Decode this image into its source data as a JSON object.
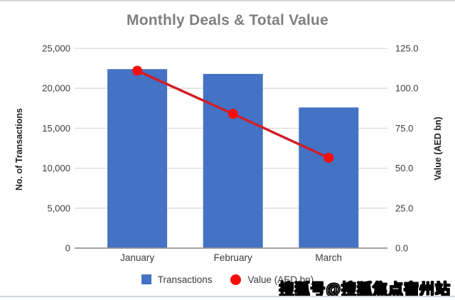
{
  "chart": {
    "title": "Monthly Deals & Total Value",
    "left_axis_title": "No. of Transactions",
    "right_axis_title": "Value (AED bn)"
  },
  "chart_data": {
    "type": "bar",
    "subtype": "combo-bar-line-dual-axis",
    "title": "Monthly Deals & Total Value",
    "categories": [
      "January",
      "February",
      "March"
    ],
    "series": [
      {
        "name": "Transactions",
        "type": "bar",
        "axis": "left",
        "color": "#4472C4",
        "values": [
          22400,
          21800,
          17600
        ]
      },
      {
        "name": "Value (AED bn)",
        "type": "line",
        "axis": "right",
        "color": "#CE2028",
        "marker": "circle",
        "marker_color": "#F80D0D",
        "values": [
          111,
          84,
          56.5
        ]
      }
    ],
    "left_axis": {
      "label": "No. of Transactions",
      "range": [
        0,
        25000
      ],
      "tick_step": 5000,
      "tick_labels": [
        "0",
        "5,000",
        "10,000",
        "15,000",
        "20,000",
        "25,000"
      ]
    },
    "right_axis": {
      "label": "Value (AED bn)",
      "range": [
        0,
        125
      ],
      "tick_step": 25,
      "tick_labels": [
        "0.0",
        "25.0",
        "50.0",
        "75.0",
        "100.0",
        "125.0"
      ]
    },
    "grid": true,
    "legend_position": "bottom"
  },
  "legend": {
    "items": [
      {
        "label": "Transactions",
        "swatch": "square",
        "color": "#4472C4"
      },
      {
        "label": "Value (AED bn)",
        "swatch": "circle",
        "color": "#F80D0D"
      }
    ]
  },
  "watermark": {
    "text": "搜狐号@搜狐焦点宿州站"
  },
  "colors": {
    "bar_blue": "#4472C4",
    "line_red": "#CE2028",
    "marker_red": "#F80D0D",
    "gridline": "#d9d9d9",
    "axis_line": "#949494",
    "title_gray": "#7f7f7f",
    "tick_text": "#3b3b3b"
  }
}
